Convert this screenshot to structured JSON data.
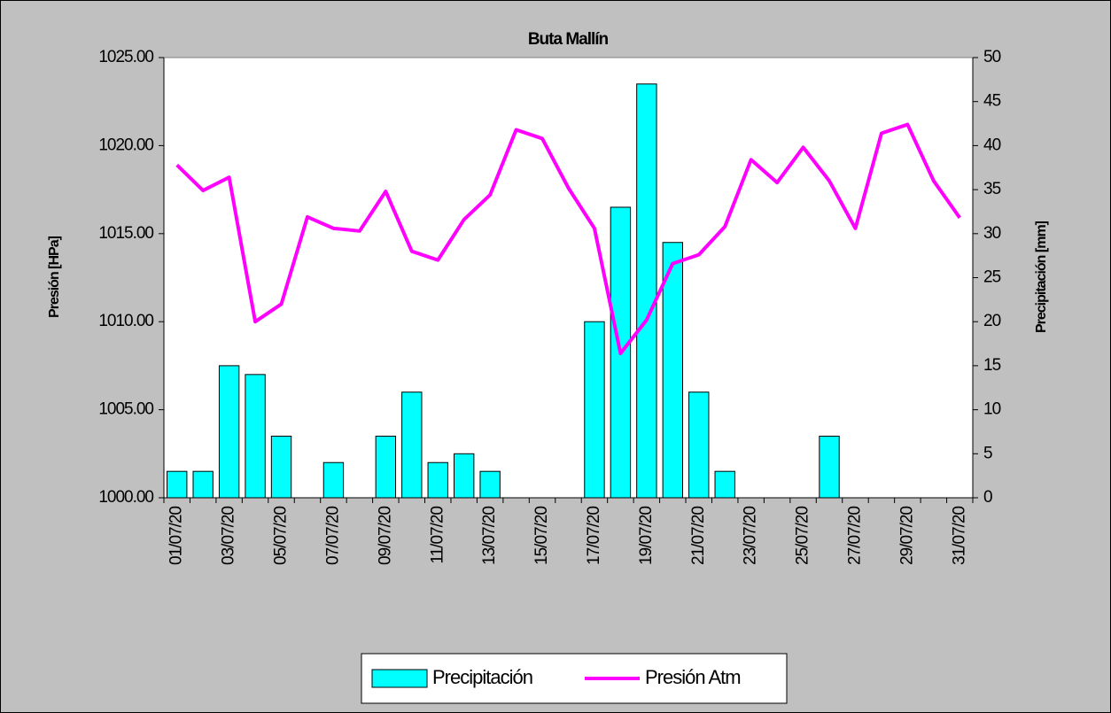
{
  "chart_data": {
    "type": "bar_line",
    "title": "Buta Mallín",
    "ylabel": "Presión [HPa]",
    "y2label": "Precipitación [mm]",
    "categories": [
      "01/07/20",
      null,
      "03/07/20",
      null,
      "05/07/20",
      null,
      "07/07/20",
      null,
      "09/07/20",
      null,
      "11/07/20",
      null,
      "13/07/20",
      null,
      "15/07/20",
      null,
      "17/07/20",
      null,
      "19/07/20",
      null,
      "21/07/20",
      null,
      "23/07/20",
      null,
      "25/07/20",
      null,
      "27/07/20",
      null,
      "29/07/20",
      null,
      "31/07/20"
    ],
    "series": [
      {
        "name": "Precipitación",
        "type": "bar",
        "axis": "y2",
        "color": "#00ffff",
        "values": [
          3,
          3,
          15,
          14,
          7,
          0,
          4,
          0,
          7,
          12,
          4,
          5,
          3,
          0,
          0,
          0,
          20,
          33,
          47,
          29,
          12,
          3,
          0,
          0,
          0,
          7,
          0,
          0,
          0,
          0,
          0
        ]
      },
      {
        "name": "Presión Atm",
        "type": "line",
        "axis": "y",
        "color": "#ff00ff",
        "values": [
          1018.9,
          1017.45,
          1018.2,
          1010.0,
          1011.0,
          1015.95,
          1015.3,
          1015.15,
          1017.4,
          1014.0,
          1013.5,
          1015.8,
          1017.2,
          1020.9,
          1020.4,
          1017.6,
          1015.3,
          1008.2,
          1010.1,
          1013.3,
          1013.8,
          1015.4,
          1019.2,
          1017.9,
          1019.9,
          1018.0,
          1015.3,
          1020.7,
          1021.2,
          1018.0,
          1015.9
        ]
      }
    ],
    "ylim": [
      1000,
      1025
    ],
    "yticks": [
      {
        "value": 1000,
        "label": "1000.00"
      },
      {
        "value": 1005,
        "label": "1005.00"
      },
      {
        "value": 1010,
        "label": "1010.00"
      },
      {
        "value": 1015,
        "label": "1015.00"
      },
      {
        "value": 1020,
        "label": "1020.00"
      },
      {
        "value": 1025,
        "label": "1025.00"
      }
    ],
    "y2lim": [
      0,
      50
    ],
    "y2ticks": [
      0,
      5,
      10,
      15,
      20,
      25,
      30,
      35,
      40,
      45,
      50
    ],
    "legend": "bottom"
  }
}
